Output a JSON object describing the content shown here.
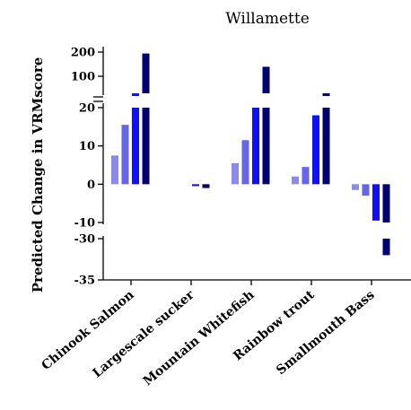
{
  "chart_data": {
    "type": "bar",
    "title": "Willamette",
    "xlabel": "",
    "ylabel": "Predicted Change in VRMscore",
    "categories": [
      "Chinook Salmon",
      "Largescale sucker",
      "Mountain Whitefish",
      "Rainbow trout",
      "Smallmouth Bass"
    ],
    "series": [
      {
        "values": [
          7.5,
          0,
          5.5,
          2,
          -1.5
        ]
      },
      {
        "values": [
          15.5,
          0,
          11.5,
          4.5,
          -3
        ]
      },
      {
        "values": [
          50,
          -0.5,
          20,
          18,
          -9.5
        ]
      },
      {
        "values": [
          195,
          -1,
          150,
          55,
          -32
        ]
      }
    ],
    "colors": [
      "#8a8ae8",
      "#6666e6",
      "#1010f8",
      "#00006e"
    ],
    "axis_breaks": [
      [
        20,
        50
      ],
      [
        -10,
        -30
      ]
    ],
    "y_ticks": [
      "200",
      "100",
      "20",
      "10",
      "0",
      "-10",
      "-30",
      "-35"
    ],
    "ylim": [
      -35,
      200
    ],
    "grid": false,
    "legend": "none"
  }
}
